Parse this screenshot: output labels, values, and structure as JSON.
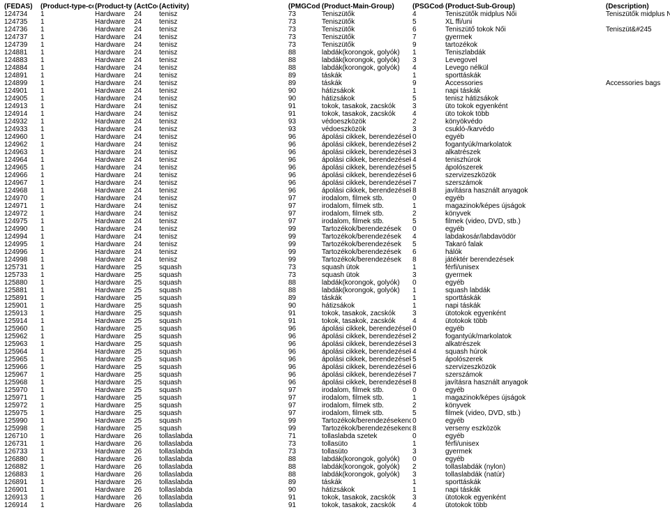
{
  "headers": [
    "(FEDAS)",
    "(Product-type-code)",
    "(Product-type)",
    "(ActCode)",
    "(Activity)",
    "(PMGCode)",
    "(Product-Main-Group)",
    "(PSGCode)",
    "(Product-Sub-Group)",
    "(Description)"
  ],
  "rows": [
    [
      "124734",
      "1",
      "Hardware",
      "24",
      "tenisz",
      "73",
      "Teniszütők",
      "4",
      "Teniszütők midplus Női",
      "Teniszütők midplus Női"
    ],
    [
      "124735",
      "1",
      "Hardware",
      "24",
      "tenisz",
      "73",
      "Teniszütők",
      "5",
      "XL ffi/uni",
      ""
    ],
    [
      "124736",
      "1",
      "Hardware",
      "24",
      "tenisz",
      "73",
      "Teniszütők",
      "6",
      "Teniszütő tokok Női",
      "Teniszüt&#245"
    ],
    [
      "124737",
      "1",
      "Hardware",
      "24",
      "tenisz",
      "73",
      "Teniszütők",
      "7",
      "gyermek",
      ""
    ],
    [
      "124739",
      "1",
      "Hardware",
      "24",
      "tenisz",
      "73",
      "Teniszütők",
      "9",
      "tartozékok",
      ""
    ],
    [
      "124881",
      "1",
      "Hardware",
      "24",
      "tenisz",
      "88",
      "labdák(korongok, golyók)",
      "1",
      "Teniszlabdák",
      ""
    ],
    [
      "124883",
      "1",
      "Hardware",
      "24",
      "tenisz",
      "88",
      "labdák(korongok, golyók)",
      "3",
      "Levegovel",
      ""
    ],
    [
      "124884",
      "1",
      "Hardware",
      "24",
      "tenisz",
      "88",
      "labdák(korongok, golyók)",
      "4",
      "Levego nélkül",
      ""
    ],
    [
      "124891",
      "1",
      "Hardware",
      "24",
      "tenisz",
      "89",
      "táskák",
      "1",
      "sporttáskák",
      ""
    ],
    [
      "124899",
      "1",
      "Hardware",
      "24",
      "tenisz",
      "89",
      "táskák",
      "9",
      "Accessories",
      "Accessories bags"
    ],
    [
      "124901",
      "1",
      "Hardware",
      "24",
      "tenisz",
      "90",
      "hátizsákok",
      "1",
      "napi táskák",
      ""
    ],
    [
      "124905",
      "1",
      "Hardware",
      "24",
      "tenisz",
      "90",
      "hátizsákok",
      "5",
      "tenisz hátizsákok",
      ""
    ],
    [
      "124913",
      "1",
      "Hardware",
      "24",
      "tenisz",
      "91",
      "tokok, tasakok, zacskók",
      "3",
      "üto tokok egyenként",
      ""
    ],
    [
      "124914",
      "1",
      "Hardware",
      "24",
      "tenisz",
      "91",
      "tokok, tasakok, zacskók",
      "4",
      "üto tokok több",
      ""
    ],
    [
      "124932",
      "1",
      "Hardware",
      "24",
      "tenisz",
      "93",
      "védoeszközök",
      "2",
      "könyökvédo",
      ""
    ],
    [
      "124933",
      "1",
      "Hardware",
      "24",
      "tenisz",
      "93",
      "védoeszközök",
      "3",
      "csukló-/karvédo",
      ""
    ],
    [
      "124960",
      "1",
      "Hardware",
      "24",
      "tenisz",
      "96",
      "ápolási cikkek, berendezések",
      "0",
      "egyéb",
      ""
    ],
    [
      "124962",
      "1",
      "Hardware",
      "24",
      "tenisz",
      "96",
      "ápolási cikkek, berendezések",
      "2",
      "fogantyúk/markolatok",
      ""
    ],
    [
      "124963",
      "1",
      "Hardware",
      "24",
      "tenisz",
      "96",
      "ápolási cikkek, berendezések",
      "3",
      "alkatrészek",
      ""
    ],
    [
      "124964",
      "1",
      "Hardware",
      "24",
      "tenisz",
      "96",
      "ápolási cikkek, berendezések",
      "4",
      "teniszhúrok",
      ""
    ],
    [
      "124965",
      "1",
      "Hardware",
      "24",
      "tenisz",
      "96",
      "ápolási cikkek, berendezések",
      "5",
      "ápolószerek",
      ""
    ],
    [
      "124966",
      "1",
      "Hardware",
      "24",
      "tenisz",
      "96",
      "ápolási cikkek, berendezések",
      "6",
      "szervizeszközök",
      ""
    ],
    [
      "124967",
      "1",
      "Hardware",
      "24",
      "tenisz",
      "96",
      "ápolási cikkek, berendezések",
      "7",
      "szerszámok",
      ""
    ],
    [
      "124968",
      "1",
      "Hardware",
      "24",
      "tenisz",
      "96",
      "ápolási cikkek, berendezések",
      "8",
      "javításra használt anyagok",
      ""
    ],
    [
      "124970",
      "1",
      "Hardware",
      "24",
      "tenisz",
      "97",
      "irodalom, filmek stb.",
      "0",
      "egyéb",
      ""
    ],
    [
      "124971",
      "1",
      "Hardware",
      "24",
      "tenisz",
      "97",
      "irodalom, filmek stb.",
      "1",
      "magazinok/képes újságok",
      ""
    ],
    [
      "124972",
      "1",
      "Hardware",
      "24",
      "tenisz",
      "97",
      "irodalom, filmek stb.",
      "2",
      "könyvek",
      ""
    ],
    [
      "124975",
      "1",
      "Hardware",
      "24",
      "tenisz",
      "97",
      "irodalom, filmek stb.",
      "5",
      "filmek (video, DVD, stb.)",
      ""
    ],
    [
      "124990",
      "1",
      "Hardware",
      "24",
      "tenisz",
      "99",
      "Tartozékok/berendezések",
      "0",
      "egyéb",
      ""
    ],
    [
      "124994",
      "1",
      "Hardware",
      "24",
      "tenisz",
      "99",
      "Tartozékok/berendezések",
      "4",
      "labdakosár/labdavödör",
      ""
    ],
    [
      "124995",
      "1",
      "Hardware",
      "24",
      "tenisz",
      "99",
      "Tartozékok/berendezések",
      "5",
      "Takaró falak",
      ""
    ],
    [
      "124996",
      "1",
      "Hardware",
      "24",
      "tenisz",
      "99",
      "Tartozékok/berendezések",
      "6",
      "hálók",
      ""
    ],
    [
      "124998",
      "1",
      "Hardware",
      "24",
      "tenisz",
      "99",
      "Tartozékok/berendezések",
      "8",
      "játéktér berendezések",
      ""
    ],
    [
      "125731",
      "1",
      "Hardware",
      "25",
      "squash",
      "73",
      "squash ütok",
      "1",
      "férfi/unisex",
      ""
    ],
    [
      "125733",
      "1",
      "Hardware",
      "25",
      "squash",
      "73",
      "squash ütok",
      "3",
      "gyermek",
      ""
    ],
    [
      "125880",
      "1",
      "Hardware",
      "25",
      "squash",
      "88",
      "labdák(korongok, golyók)",
      "0",
      "egyéb",
      ""
    ],
    [
      "125881",
      "1",
      "Hardware",
      "25",
      "squash",
      "88",
      "labdák(korongok, golyók)",
      "1",
      "squash labdák",
      ""
    ],
    [
      "125891",
      "1",
      "Hardware",
      "25",
      "squash",
      "89",
      "táskák",
      "1",
      "sporttáskák",
      ""
    ],
    [
      "125901",
      "1",
      "Hardware",
      "25",
      "squash",
      "90",
      "hátizsákok",
      "1",
      "napi táskák",
      ""
    ],
    [
      "125913",
      "1",
      "Hardware",
      "25",
      "squash",
      "91",
      "tokok, tasakok, zacskók",
      "3",
      "ütotokok egyenként",
      ""
    ],
    [
      "125914",
      "1",
      "Hardware",
      "25",
      "squash",
      "91",
      "tokok, tasakok, zacskók",
      "4",
      "ütotokok több",
      ""
    ],
    [
      "125960",
      "1",
      "Hardware",
      "25",
      "squash",
      "96",
      "ápolási cikkek, berendezések",
      "0",
      "egyéb",
      ""
    ],
    [
      "125962",
      "1",
      "Hardware",
      "25",
      "squash",
      "96",
      "ápolási cikkek, berendezések",
      "2",
      "fogantyúk/markolatok",
      ""
    ],
    [
      "125963",
      "1",
      "Hardware",
      "25",
      "squash",
      "96",
      "ápolási cikkek, berendezések",
      "3",
      "alkatrészek",
      ""
    ],
    [
      "125964",
      "1",
      "Hardware",
      "25",
      "squash",
      "96",
      "ápolási cikkek, berendezések",
      "4",
      "squash húrok",
      ""
    ],
    [
      "125965",
      "1",
      "Hardware",
      "25",
      "squash",
      "96",
      "ápolási cikkek, berendezések",
      "5",
      "ápolószerek",
      ""
    ],
    [
      "125966",
      "1",
      "Hardware",
      "25",
      "squash",
      "96",
      "ápolási cikkek, berendezések",
      "6",
      "szervizeszközök",
      ""
    ],
    [
      "125967",
      "1",
      "Hardware",
      "25",
      "squash",
      "96",
      "ápolási cikkek, berendezések",
      "7",
      "szerszámok",
      ""
    ],
    [
      "125968",
      "1",
      "Hardware",
      "25",
      "squash",
      "96",
      "ápolási cikkek, berendezések",
      "8",
      "javításra használt anyagok",
      ""
    ],
    [
      "125970",
      "1",
      "Hardware",
      "25",
      "squash",
      "97",
      "irodalom, filmek stb.",
      "0",
      "egyéb",
      ""
    ],
    [
      "125971",
      "1",
      "Hardware",
      "25",
      "squash",
      "97",
      "irodalom, filmek stb.",
      "1",
      "magazinok/képes újságok",
      ""
    ],
    [
      "125972",
      "1",
      "Hardware",
      "25",
      "squash",
      "97",
      "irodalom, filmek stb.",
      "2",
      "könyvek",
      ""
    ],
    [
      "125975",
      "1",
      "Hardware",
      "25",
      "squash",
      "97",
      "irodalom, filmek stb.",
      "5",
      "filmek (video, DVD, stb.)",
      ""
    ],
    [
      "125990",
      "1",
      "Hardware",
      "25",
      "squash",
      "99",
      "Tartozékok/berendezésekendezése",
      "0",
      "egyéb",
      ""
    ],
    [
      "125998",
      "1",
      "Hardware",
      "25",
      "squash",
      "99",
      "Tartozékok/berendezésekendezése",
      "8",
      "verseny eszközök",
      ""
    ],
    [
      "126710",
      "1",
      "Hardware",
      "26",
      "tollaslabda",
      "71",
      "tollaslabda szetek",
      "0",
      "egyéb",
      ""
    ],
    [
      "126731",
      "1",
      "Hardware",
      "26",
      "tollaslabda",
      "73",
      "tollasüto",
      "1",
      "férfi/unisex",
      ""
    ],
    [
      "126733",
      "1",
      "Hardware",
      "26",
      "tollaslabda",
      "73",
      "tollasüto",
      "3",
      "gyermek",
      ""
    ],
    [
      "126880",
      "1",
      "Hardware",
      "26",
      "tollaslabda",
      "88",
      "labdák(korongok, golyók)",
      "0",
      "egyéb",
      ""
    ],
    [
      "126882",
      "1",
      "Hardware",
      "26",
      "tollaslabda",
      "88",
      "labdák(korongok, golyók)",
      "2",
      "tollaslabdák (nylon)",
      ""
    ],
    [
      "126883",
      "1",
      "Hardware",
      "26",
      "tollaslabda",
      "88",
      "labdák(korongok, golyók)",
      "3",
      "tollaslabdák (natúr)",
      ""
    ],
    [
      "126891",
      "1",
      "Hardware",
      "26",
      "tollaslabda",
      "89",
      "táskák",
      "1",
      "sporttáskák",
      ""
    ],
    [
      "126901",
      "1",
      "Hardware",
      "26",
      "tollaslabda",
      "90",
      "hátizsákok",
      "1",
      "napi táskák",
      ""
    ],
    [
      "126913",
      "1",
      "Hardware",
      "26",
      "tollaslabda",
      "91",
      "tokok, tasakok, zacskók",
      "3",
      "ütotokok egyenként",
      ""
    ],
    [
      "126914",
      "1",
      "Hardware",
      "26",
      "tollaslabda",
      "91",
      "tokok, tasakok, zacskók",
      "4",
      "ütotokok több",
      ""
    ]
  ]
}
